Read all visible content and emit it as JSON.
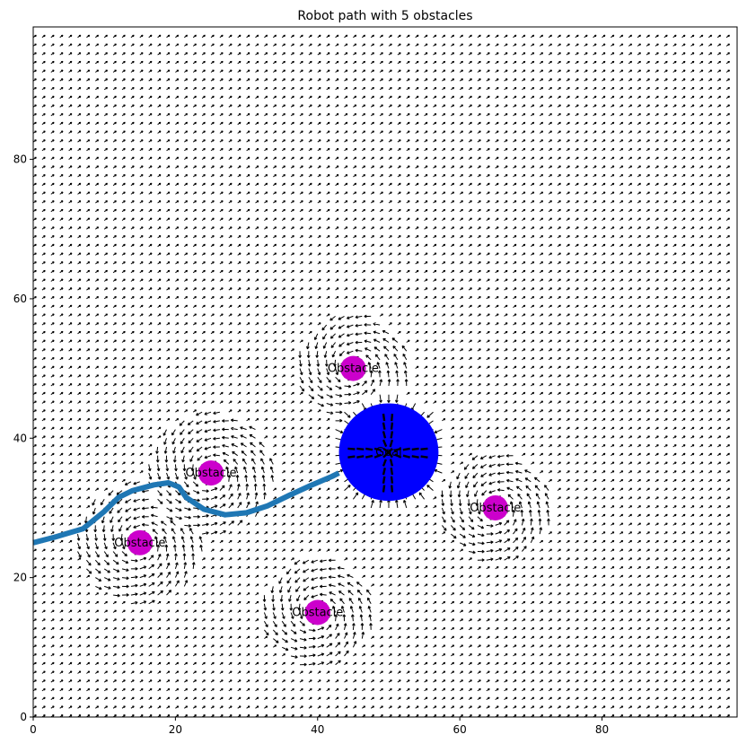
{
  "chart_data": {
    "type": "scatter",
    "title": "Robot path with 5 obstacles",
    "xlabel": "",
    "ylabel": "",
    "xlim": [
      0,
      99
    ],
    "ylim": [
      0,
      99
    ],
    "x_ticks": [
      0,
      20,
      40,
      60,
      80
    ],
    "y_ticks": [
      0,
      20,
      40,
      60,
      80
    ],
    "grid": false,
    "quiver_field": {
      "x_range": [
        0,
        98
      ],
      "y_range": [
        0,
        98
      ],
      "step": 1.25,
      "base_direction_deg": 35,
      "arrow_color": "#000000"
    },
    "goal": {
      "label": "Goal",
      "x": 50,
      "y": 38,
      "radius": 7,
      "color": "#0000ff"
    },
    "obstacles": [
      {
        "label": "Obstacle",
        "x": 25,
        "y": 35,
        "radius": 1.8,
        "influence": 9,
        "color": "#cc00cc"
      },
      {
        "label": "Obstacle",
        "x": 45,
        "y": 50,
        "radius": 1.8,
        "influence": 8,
        "color": "#cc00cc"
      },
      {
        "label": "Obstacle",
        "x": 65,
        "y": 30,
        "radius": 1.8,
        "influence": 8,
        "color": "#cc00cc"
      },
      {
        "label": "Obstacle",
        "x": 15,
        "y": 25,
        "radius": 1.8,
        "influence": 9,
        "color": "#cc00cc"
      },
      {
        "label": "Obstacle",
        "x": 40,
        "y": 15,
        "radius": 1.8,
        "influence": 8,
        "color": "#cc00cc"
      }
    ],
    "path": {
      "color": "#1f77b4",
      "points": [
        [
          0,
          25
        ],
        [
          3,
          25.8
        ],
        [
          7,
          27
        ],
        [
          10,
          29.5
        ],
        [
          12,
          31.5
        ],
        [
          14,
          32.5
        ],
        [
          17,
          33.3
        ],
        [
          19,
          33.6
        ],
        [
          20.5,
          33
        ],
        [
          21.5,
          31.5
        ],
        [
          24,
          29.8
        ],
        [
          27,
          29
        ],
        [
          30,
          29.3
        ],
        [
          33,
          30.3
        ],
        [
          36,
          31.8
        ],
        [
          39,
          33.2
        ],
        [
          42,
          34.5
        ],
        [
          43,
          35
        ]
      ]
    }
  }
}
